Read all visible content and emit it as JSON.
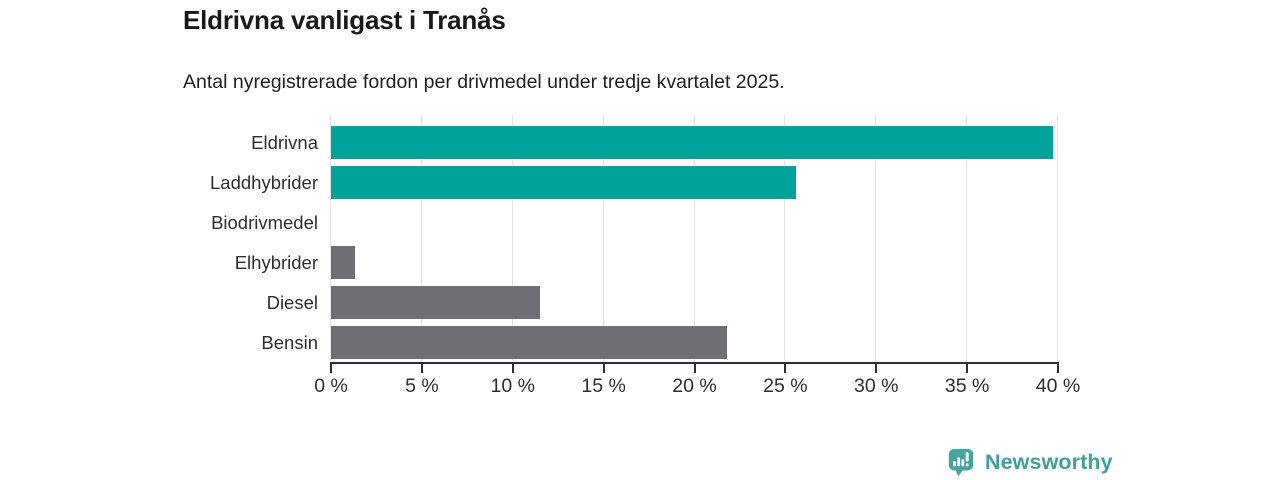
{
  "header": {
    "title": "Eldrivna vanligast i Tranås",
    "subtitle": "Antal nyregistrerade fordon per drivmedel under tredje kvartalet 2025."
  },
  "chart_data": {
    "type": "bar",
    "orientation": "horizontal",
    "title": "Eldrivna vanligast i Tranås",
    "subtitle": "Antal nyregistrerade fordon per drivmedel under tredje kvartalet 2025.",
    "categories": [
      "Eldrivna",
      "Laddhybrider",
      "Biodrivmedel",
      "Elhybrider",
      "Diesel",
      "Bensin"
    ],
    "values": [
      39.7,
      25.6,
      0,
      1.3,
      11.5,
      21.8
    ],
    "unit": "%",
    "bar_colors": [
      "#00a39a",
      "#00a39a",
      "#6f6e75",
      "#6f6e75",
      "#6f6e75",
      "#6f6e75"
    ],
    "xlim": [
      0,
      40
    ],
    "x_tick_step": 5,
    "x_tick_labels": [
      "0 %",
      "5 %",
      "10 %",
      "15 %",
      "20 %",
      "25 %",
      "30 %",
      "35 %",
      "40 %"
    ],
    "xlabel": "",
    "ylabel": "",
    "grid": true,
    "legend": false
  },
  "colors": {
    "teal_bar": "#00a39a",
    "gray_bar": "#6f6e75",
    "gridline": "#e3e3e3",
    "axis": "#2f2f2f",
    "title_text": "#191919",
    "body_text": "#2e2e2e",
    "brand_teal": "#3da09a"
  },
  "footer": {
    "brand_name": "Newsworthy"
  }
}
